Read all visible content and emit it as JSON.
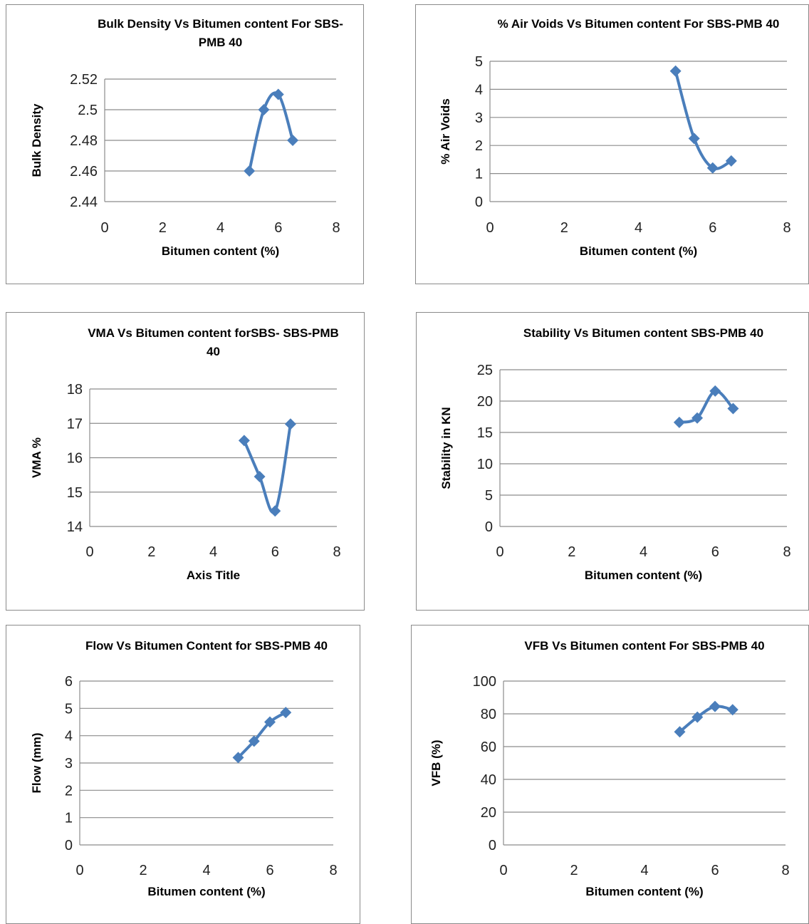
{
  "chart_data": [
    {
      "type": "line",
      "title_lines": [
        "Bulk Density Vs Bitumen content  For SBS-",
        "PMB 40"
      ],
      "xlabel": "Bitumen content  (%)",
      "ylabel": "Bulk Density",
      "xlim": [
        0,
        8
      ],
      "ylim": [
        2.44,
        2.52
      ],
      "xticks": [
        "0",
        "2",
        "4",
        "6",
        "8"
      ],
      "yticks": [
        "2.44",
        "2.46",
        "2.48",
        "2.5",
        "2.52"
      ],
      "grid": true,
      "series": [
        {
          "x": [
            5,
            5.5,
            6,
            6.5
          ],
          "y": [
            2.46,
            2.5,
            2.51,
            2.48
          ]
        }
      ]
    },
    {
      "type": "line",
      "title_lines": [
        "% Air Voids Vs Bitumen content  For SBS-PMB 40"
      ],
      "xlabel": "Bitumen content  (%)",
      "ylabel": "% Air Voids",
      "xlim": [
        0,
        8
      ],
      "ylim": [
        0,
        5
      ],
      "xticks": [
        "0",
        "2",
        "4",
        "6",
        "8"
      ],
      "yticks": [
        "0",
        "1",
        "2",
        "3",
        "4",
        "5"
      ],
      "grid": true,
      "series": [
        {
          "x": [
            5,
            5.5,
            6,
            6.5
          ],
          "y": [
            4.65,
            2.25,
            1.2,
            1.45
          ]
        }
      ]
    },
    {
      "type": "line",
      "title_lines": [
        "VMA Vs Bitumen content  forSBS- SBS-PMB",
        "40"
      ],
      "xlabel": "Axis Title",
      "ylabel": "VMA %",
      "xlim": [
        0,
        8
      ],
      "ylim": [
        14,
        18
      ],
      "xticks": [
        "0",
        "2",
        "4",
        "6",
        "8"
      ],
      "yticks": [
        "14",
        "15",
        "16",
        "17",
        "18"
      ],
      "grid": true,
      "series": [
        {
          "x": [
            5,
            5.5,
            6,
            6.5
          ],
          "y": [
            16.5,
            15.45,
            14.45,
            16.98
          ]
        }
      ]
    },
    {
      "type": "line",
      "title_lines": [
        "Stability Vs Bitumen content  SBS-PMB 40"
      ],
      "xlabel": "Bitumen content  (%)",
      "ylabel": "Stability in KN",
      "xlim": [
        0,
        8
      ],
      "ylim": [
        0,
        25
      ],
      "xticks": [
        "0",
        "2",
        "4",
        "6",
        "8"
      ],
      "yticks": [
        "0",
        "5",
        "10",
        "15",
        "20",
        "25"
      ],
      "grid": true,
      "series": [
        {
          "x": [
            5,
            5.5,
            6,
            6.5
          ],
          "y": [
            16.6,
            17.3,
            21.6,
            18.8
          ]
        }
      ]
    },
    {
      "type": "line",
      "title_lines": [
        "Flow Vs Bitumen Content  for SBS-PMB 40"
      ],
      "xlabel": "Bitumen content  (%)",
      "ylabel": "Flow (mm)",
      "xlim": [
        0,
        8
      ],
      "ylim": [
        0,
        6
      ],
      "xticks": [
        "0",
        "2",
        "4",
        "6",
        "8"
      ],
      "yticks": [
        "0",
        "1",
        "2",
        "3",
        "4",
        "5",
        "6"
      ],
      "grid": true,
      "series": [
        {
          "x": [
            5,
            5.5,
            6,
            6.5
          ],
          "y": [
            3.2,
            3.8,
            4.5,
            4.85
          ]
        }
      ]
    },
    {
      "type": "line",
      "title_lines": [
        "VFB Vs Bitumen content  For SBS-PMB 40"
      ],
      "xlabel": "Bitumen content  (%)",
      "ylabel": "VFB (%)",
      "xlim": [
        0,
        8
      ],
      "ylim": [
        0,
        100
      ],
      "xticks": [
        "0",
        "2",
        "4",
        "6",
        "8"
      ],
      "yticks": [
        "0",
        "20",
        "40",
        "60",
        "80",
        "100"
      ],
      "grid": true,
      "series": [
        {
          "x": [
            5,
            5.5,
            6,
            6.5
          ],
          "y": [
            69,
            78,
            84.5,
            82.5
          ]
        }
      ]
    }
  ],
  "colors": {
    "series": "#4a7ebb",
    "grid": "#8c8c8c",
    "axis": "#8c8c8c"
  }
}
